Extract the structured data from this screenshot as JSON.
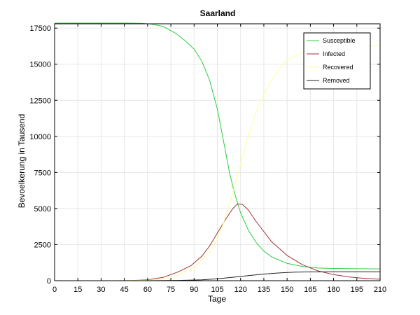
{
  "chart_data": {
    "type": "line",
    "title": "Saarland",
    "xlabel": "Tage",
    "ylabel": "Bevoelkerung in Tausend",
    "xlim": [
      0,
      210
    ],
    "ylim": [
      0,
      17800
    ],
    "xticks": [
      0,
      15,
      30,
      45,
      60,
      75,
      90,
      105,
      120,
      135,
      150,
      165,
      180,
      195,
      210
    ],
    "yticks": [
      0,
      2500,
      5000,
      7500,
      10000,
      12500,
      15000,
      17500
    ],
    "grid": true,
    "legend_position": "top-right",
    "series": [
      {
        "name": "Susceptible",
        "color": "#2ecc40",
        "points": [
          [
            0,
            17850
          ],
          [
            30,
            17850
          ],
          [
            45,
            17848
          ],
          [
            55,
            17835
          ],
          [
            62,
            17790
          ],
          [
            70,
            17620
          ],
          [
            78,
            17150
          ],
          [
            84,
            16650
          ],
          [
            90,
            16050
          ],
          [
            95,
            15200
          ],
          [
            100,
            13900
          ],
          [
            105,
            11900
          ],
          [
            110,
            9100
          ],
          [
            113,
            7400
          ],
          [
            116,
            6100
          ],
          [
            120,
            4700
          ],
          [
            125,
            3500
          ],
          [
            130,
            2650
          ],
          [
            135,
            2050
          ],
          [
            140,
            1650
          ],
          [
            150,
            1200
          ],
          [
            160,
            980
          ],
          [
            170,
            880
          ],
          [
            180,
            850
          ],
          [
            195,
            830
          ],
          [
            210,
            820
          ]
        ]
      },
      {
        "name": "Infected",
        "color": "#a0303a",
        "points": [
          [
            0,
            0
          ],
          [
            40,
            0
          ],
          [
            50,
            10
          ],
          [
            60,
            60
          ],
          [
            70,
            230
          ],
          [
            80,
            620
          ],
          [
            88,
            1050
          ],
          [
            95,
            1700
          ],
          [
            100,
            2400
          ],
          [
            105,
            3300
          ],
          [
            110,
            4200
          ],
          [
            115,
            5000
          ],
          [
            118,
            5320
          ],
          [
            121,
            5300
          ],
          [
            125,
            4900
          ],
          [
            130,
            4100
          ],
          [
            140,
            2700
          ],
          [
            150,
            1750
          ],
          [
            160,
            1100
          ],
          [
            170,
            680
          ],
          [
            180,
            420
          ],
          [
            190,
            260
          ],
          [
            200,
            160
          ],
          [
            210,
            100
          ]
        ]
      },
      {
        "name": "Recovered",
        "color": "#ffff99",
        "points": [
          [
            0,
            0
          ],
          [
            40,
            0
          ],
          [
            60,
            30
          ],
          [
            75,
            200
          ],
          [
            90,
            900
          ],
          [
            100,
            2000
          ],
          [
            105,
            2900
          ],
          [
            110,
            4300
          ],
          [
            115,
            6100
          ],
          [
            120,
            8100
          ],
          [
            125,
            10000
          ],
          [
            130,
            11700
          ],
          [
            135,
            12900
          ],
          [
            140,
            13900
          ],
          [
            145,
            14700
          ],
          [
            150,
            15300
          ],
          [
            160,
            15800
          ],
          [
            170,
            16050
          ],
          [
            180,
            16150
          ],
          [
            195,
            16250
          ],
          [
            210,
            16300
          ]
        ]
      },
      {
        "name": "Removed",
        "color": "#202020",
        "points": [
          [
            0,
            0
          ],
          [
            60,
            0
          ],
          [
            80,
            20
          ],
          [
            95,
            60
          ],
          [
            105,
            130
          ],
          [
            115,
            240
          ],
          [
            125,
            350
          ],
          [
            135,
            460
          ],
          [
            145,
            540
          ],
          [
            155,
            590
          ],
          [
            165,
            610
          ],
          [
            180,
            620
          ],
          [
            195,
            620
          ],
          [
            210,
            620
          ]
        ]
      }
    ]
  }
}
